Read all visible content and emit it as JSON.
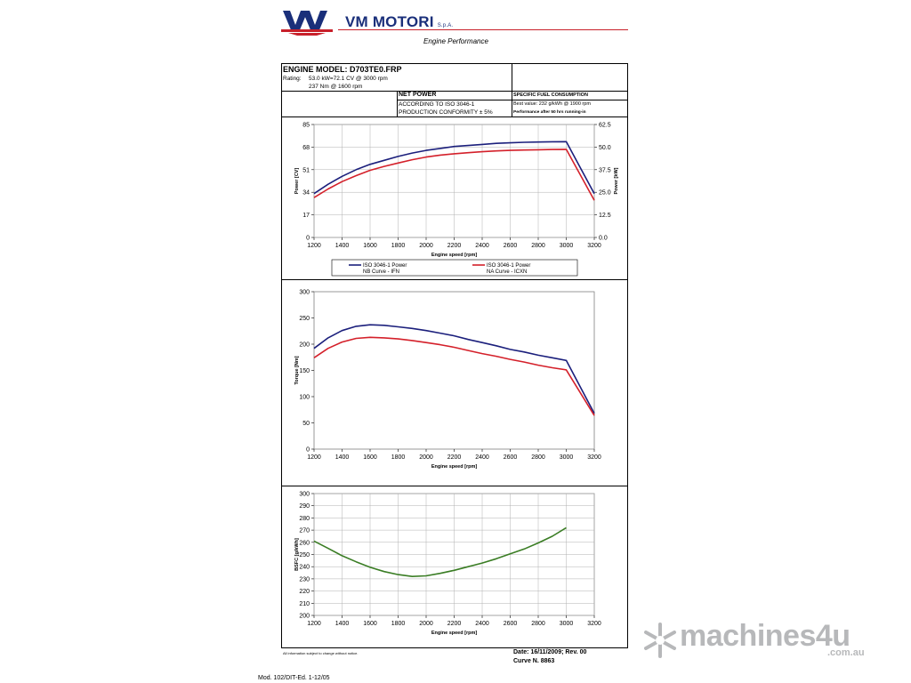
{
  "header": {
    "company": "VM MOTORI",
    "company_suffix": "S.p.A.",
    "subtitle": "Engine Performance",
    "brand_red": "#c8202a",
    "brand_blue": "#1a2f7a"
  },
  "info": {
    "engine_model": "ENGINE MODEL: D703TE0.FRP",
    "rating_label": "Rating:",
    "rating_line1": "53.0 kW=72.1 CV @ 3000 rpm",
    "rating_line2": "237 Nm @ 1600 rpm",
    "net_power": "NET POWER",
    "according": "ACCORDING TO ISO 3046-1",
    "conformity": "PRODUCTION CONFORMITY ± 5%",
    "sfc_title": "SPECIFIC FUEL CONSUMPTION",
    "sfc_best": "Best value: 232 g/kWh @ 1900 rpm",
    "sfc_note": "Performance after 50 hrs running-in"
  },
  "footer": {
    "note": "All information subject to change without notice.",
    "date": "Date: 16/11/2009; Rev. 00",
    "curve": "Curve N. 8863",
    "mod": "Mod. 102/DIT-Ed. 1-12/05"
  },
  "watermark": {
    "text": "machines4u",
    "sub": ".com.au"
  },
  "chart_data": [
    {
      "type": "line",
      "xlabel": "Engine speed [rpm]",
      "ylabel": "Power [CV]",
      "y2label": "Power [kW]",
      "xlim": [
        1200,
        3200
      ],
      "ylim": [
        0,
        85
      ],
      "y2lim": [
        0,
        62.5
      ],
      "xticks": [
        "1200",
        "1400",
        "1600",
        "1800",
        "2000",
        "2200",
        "2400",
        "2600",
        "2800",
        "3000",
        "3200"
      ],
      "yticks": [
        "0",
        "17",
        "34",
        "51",
        "68",
        "85"
      ],
      "y2ticks": [
        "0.0",
        "12.5",
        "25.0",
        "37.5",
        "50.0",
        "62.5"
      ],
      "grid": true,
      "legend_position": "bottom",
      "x": [
        1200,
        1300,
        1400,
        1500,
        1600,
        1700,
        1800,
        1900,
        2000,
        2100,
        2200,
        2300,
        2400,
        2500,
        2600,
        2700,
        2800,
        2900,
        3000,
        3200
      ],
      "series": [
        {
          "name": "ISO 3046-1 Power",
          "name2": "NB Curve - IFN",
          "color": "#1b1f7c",
          "values": [
            33,
            40,
            46,
            51,
            55,
            58,
            61,
            63.5,
            65.5,
            67,
            68.5,
            69.2,
            70,
            70.8,
            71.2,
            71.6,
            71.8,
            72,
            72.1,
            33
          ]
        },
        {
          "name": "ISO 3046-1 Power",
          "name2": "NA Curve - ICXN",
          "color": "#d4202a",
          "values": [
            30,
            36.5,
            42,
            46.5,
            50.5,
            53.5,
            56,
            58.5,
            60.5,
            62,
            63,
            63.8,
            64.5,
            65.1,
            65.5,
            65.8,
            66,
            66.2,
            66.3,
            28
          ]
        }
      ]
    },
    {
      "type": "line",
      "xlabel": "Engine speed [rpm]",
      "ylabel": "Torque [Nm]",
      "xlim": [
        1200,
        3200
      ],
      "ylim": [
        0,
        300
      ],
      "xticks": [
        "1200",
        "1400",
        "1600",
        "1800",
        "2000",
        "2200",
        "2400",
        "2600",
        "2800",
        "3000",
        "3200"
      ],
      "yticks": [
        "0",
        "50",
        "100",
        "150",
        "200",
        "250",
        "300"
      ],
      "grid": false,
      "x": [
        1200,
        1300,
        1400,
        1500,
        1600,
        1700,
        1800,
        1900,
        2000,
        2100,
        2200,
        2300,
        2400,
        2500,
        2600,
        2700,
        2800,
        2900,
        3000,
        3200
      ],
      "series": [
        {
          "color": "#1b1f7c",
          "values": [
            192,
            212,
            226,
            234,
            237,
            236,
            233,
            230,
            226,
            221,
            216,
            209,
            203,
            197,
            190,
            185,
            179,
            174,
            169,
            68
          ]
        },
        {
          "color": "#d4202a",
          "values": [
            174,
            192,
            204,
            211,
            213,
            212,
            210,
            207,
            203,
            199,
            194,
            188,
            182,
            177,
            171,
            166,
            160,
            155,
            151,
            64
          ]
        }
      ]
    },
    {
      "type": "line",
      "xlabel": "Engine speed [rpm]",
      "ylabel": "BSFC [g/kWh]",
      "xlim": [
        1200,
        3200
      ],
      "ylim": [
        200,
        300
      ],
      "xticks": [
        "1200",
        "1400",
        "1600",
        "1800",
        "2000",
        "2200",
        "2400",
        "2600",
        "2800",
        "3000",
        "3200"
      ],
      "yticks": [
        "200",
        "210",
        "220",
        "230",
        "240",
        "250",
        "260",
        "270",
        "280",
        "290",
        "300"
      ],
      "grid": true,
      "x": [
        1200,
        1300,
        1400,
        1500,
        1600,
        1700,
        1800,
        1900,
        2000,
        2100,
        2200,
        2300,
        2400,
        2500,
        2600,
        2700,
        2800,
        2900,
        3000
      ],
      "series": [
        {
          "color": "#3a7d24",
          "values": [
            261,
            255,
            249,
            244,
            239.5,
            236,
            233.5,
            232,
            232.5,
            234.5,
            237,
            240,
            243,
            246.5,
            250.5,
            254.5,
            259.5,
            265,
            272
          ]
        }
      ]
    }
  ]
}
